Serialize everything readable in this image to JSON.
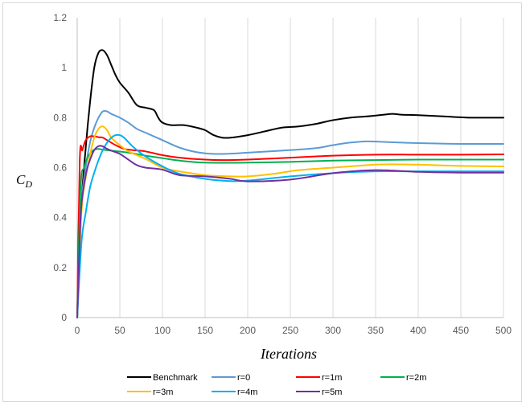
{
  "chart_data": {
    "type": "line",
    "xlabel": "Iterations",
    "ylabel": "C",
    "ylabel_sub": "D",
    "xlim": [
      0,
      500
    ],
    "ylim": [
      0,
      1.2
    ],
    "xticks": [
      0,
      50,
      100,
      150,
      200,
      250,
      300,
      350,
      400,
      450,
      500
    ],
    "yticks": [
      0,
      0.2,
      0.4,
      0.6,
      0.8,
      1,
      1.2
    ],
    "ytick_labels": [
      "0",
      "0.2",
      "0.4",
      "0.6",
      "0.8",
      "1",
      "1.2"
    ],
    "grid": "vertical",
    "legend_position": "bottom",
    "series": [
      {
        "name": "Benchmark",
        "color": "#000000",
        "x": [
          0,
          5,
          10,
          15,
          20,
          25,
          30,
          35,
          40,
          45,
          50,
          60,
          70,
          80,
          90,
          95,
          100,
          110,
          125,
          140,
          150,
          160,
          170,
          180,
          200,
          220,
          240,
          260,
          280,
          300,
          320,
          340,
          360,
          370,
          380,
          400,
          430,
          460,
          480,
          500
        ],
        "y": [
          0.0,
          0.45,
          0.68,
          0.86,
          1.0,
          1.06,
          1.07,
          1.05,
          1.01,
          0.97,
          0.94,
          0.9,
          0.85,
          0.84,
          0.83,
          0.8,
          0.78,
          0.77,
          0.77,
          0.76,
          0.75,
          0.73,
          0.72,
          0.72,
          0.73,
          0.745,
          0.76,
          0.765,
          0.775,
          0.79,
          0.8,
          0.805,
          0.812,
          0.815,
          0.812,
          0.81,
          0.805,
          0.8,
          0.8,
          0.8
        ]
      },
      {
        "name": "r=0",
        "color": "#5b9bd5",
        "x": [
          0,
          5,
          10,
          15,
          20,
          25,
          30,
          35,
          40,
          50,
          60,
          70,
          80,
          100,
          120,
          140,
          160,
          180,
          200,
          240,
          280,
          300,
          320,
          340,
          360,
          400,
          450,
          500
        ],
        "y": [
          0.0,
          0.45,
          0.6,
          0.7,
          0.76,
          0.8,
          0.825,
          0.825,
          0.815,
          0.8,
          0.78,
          0.755,
          0.74,
          0.71,
          0.68,
          0.662,
          0.655,
          0.656,
          0.66,
          0.668,
          0.678,
          0.69,
          0.7,
          0.705,
          0.703,
          0.698,
          0.695,
          0.695
        ]
      },
      {
        "name": "r=1m",
        "color": "#ff0000",
        "x": [
          0,
          3,
          6,
          10,
          15,
          20,
          25,
          30,
          35,
          45,
          55,
          65,
          80,
          100,
          120,
          150,
          170,
          200,
          250,
          300,
          350,
          400,
          450,
          500
        ],
        "y": [
          0.0,
          0.63,
          0.67,
          0.71,
          0.725,
          0.725,
          0.722,
          0.72,
          0.71,
          0.69,
          0.675,
          0.67,
          0.665,
          0.65,
          0.64,
          0.632,
          0.63,
          0.632,
          0.64,
          0.648,
          0.652,
          0.652,
          0.652,
          0.653
        ]
      },
      {
        "name": "r=2m",
        "color": "#00b050",
        "x": [
          0,
          4,
          8,
          12,
          16,
          20,
          25,
          30,
          40,
          60,
          80,
          100,
          120,
          150,
          200,
          250,
          300,
          350,
          400,
          450,
          500
        ],
        "y": [
          0.0,
          0.52,
          0.6,
          0.64,
          0.66,
          0.672,
          0.675,
          0.672,
          0.668,
          0.66,
          0.648,
          0.638,
          0.628,
          0.62,
          0.62,
          0.623,
          0.628,
          0.63,
          0.632,
          0.632,
          0.632
        ]
      },
      {
        "name": "r=3m",
        "color": "#ffc000",
        "x": [
          0,
          5,
          10,
          15,
          20,
          25,
          30,
          35,
          40,
          50,
          60,
          80,
          100,
          120,
          150,
          180,
          200,
          230,
          260,
          300,
          340,
          360,
          400,
          450,
          500
        ],
        "y": [
          0.0,
          0.42,
          0.56,
          0.65,
          0.72,
          0.755,
          0.765,
          0.75,
          0.72,
          0.69,
          0.665,
          0.635,
          0.6,
          0.585,
          0.57,
          0.565,
          0.565,
          0.575,
          0.59,
          0.6,
          0.61,
          0.613,
          0.612,
          0.607,
          0.605
        ]
      },
      {
        "name": "r=4m",
        "color": "#00b0f0",
        "x": [
          0,
          5,
          10,
          15,
          20,
          25,
          30,
          35,
          40,
          45,
          50,
          55,
          65,
          80,
          100,
          120,
          150,
          170,
          180,
          200,
          250,
          300,
          350,
          400,
          450,
          500
        ],
        "y": [
          0.0,
          0.3,
          0.42,
          0.52,
          0.58,
          0.63,
          0.67,
          0.7,
          0.72,
          0.73,
          0.73,
          0.72,
          0.685,
          0.645,
          0.605,
          0.575,
          0.555,
          0.548,
          0.546,
          0.548,
          0.565,
          0.578,
          0.585,
          0.585,
          0.585,
          0.585
        ]
      },
      {
        "name": "r=5m",
        "color": "#7030a0",
        "x": [
          0,
          4,
          8,
          12,
          16,
          20,
          25,
          30,
          35,
          40,
          50,
          60,
          70,
          80,
          100,
          120,
          150,
          180,
          200,
          250,
          300,
          350,
          400,
          450,
          500
        ],
        "y": [
          0.0,
          0.4,
          0.53,
          0.6,
          0.64,
          0.67,
          0.686,
          0.685,
          0.675,
          0.668,
          0.655,
          0.632,
          0.61,
          0.6,
          0.592,
          0.57,
          0.565,
          0.555,
          0.545,
          0.552,
          0.578,
          0.59,
          0.583,
          0.58,
          0.58
        ]
      }
    ]
  }
}
